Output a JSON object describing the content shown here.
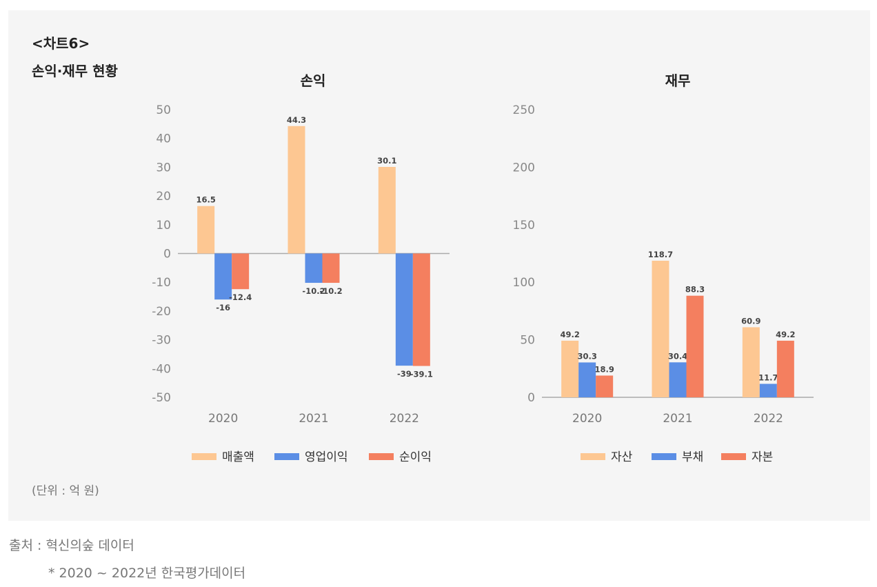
{
  "header": {
    "chart_number": "<차트6>",
    "subtitle": "손익·재무 현황"
  },
  "unit_note": "(단위 : 억 원)",
  "source": {
    "line1": "출처 : 혁신의숲 데이터",
    "line2": "* 2020 ~ 2022년 한국평가데이터"
  },
  "chart_data": [
    {
      "type": "bar",
      "title": "손익",
      "categories": [
        "2020",
        "2021",
        "2022"
      ],
      "ylim": [
        -50,
        50
      ],
      "yticks": [
        50,
        40,
        30,
        20,
        10,
        0,
        -10,
        -20,
        -30,
        -40,
        -50
      ],
      "series": [
        {
          "name": "매출액",
          "color": "#fdc792",
          "values": [
            16.5,
            44.3,
            30.1
          ],
          "labels": [
            "16.5",
            "44.3",
            "30.1"
          ]
        },
        {
          "name": "영업이익",
          "color": "#5b8ee5",
          "values": [
            -16,
            -10.2,
            -39
          ],
          "labels": [
            "-16",
            "-10.2",
            "-39"
          ]
        },
        {
          "name": "순이익",
          "color": "#f47f5f",
          "values": [
            -12.4,
            -10.2,
            -39.1
          ],
          "labels": [
            "-12.4",
            "-10.2",
            "-39.1"
          ]
        }
      ],
      "legend": "bottom"
    },
    {
      "type": "bar",
      "title": "재무",
      "categories": [
        "2020",
        "2021",
        "2022"
      ],
      "ylim": [
        0,
        250
      ],
      "yticks": [
        250,
        200,
        150,
        100,
        50,
        0
      ],
      "series": [
        {
          "name": "자산",
          "color": "#fdc792",
          "values": [
            49.2,
            118.7,
            60.9
          ],
          "labels": [
            "49.2",
            "118.7",
            "60.9"
          ]
        },
        {
          "name": "부채",
          "color": "#5b8ee5",
          "values": [
            30.3,
            30.4,
            11.7
          ],
          "labels": [
            "30.3",
            "30.4",
            "11.7"
          ]
        },
        {
          "name": "자본",
          "color": "#f47f5f",
          "values": [
            18.9,
            88.3,
            49.2
          ],
          "labels": [
            "18.9",
            "88.3",
            "49.2"
          ]
        }
      ],
      "legend": "bottom"
    }
  ]
}
